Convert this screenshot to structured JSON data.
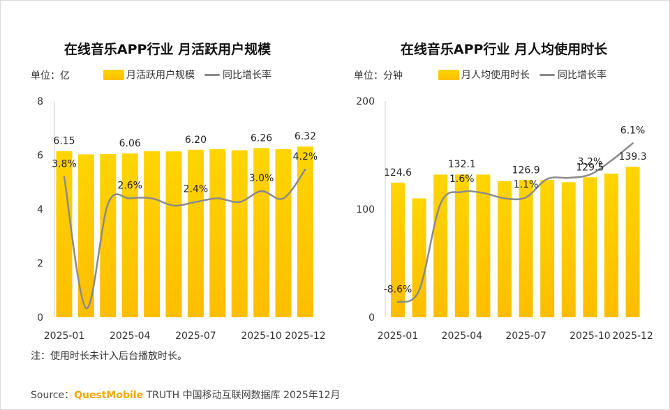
{
  "note": "注：使用时长未计入后台播放时长。",
  "source": {
    "prefix": "Source：",
    "brand": "QuestMobile",
    "rest": " TRUTH 中国移动互联网数据库 2025年12月"
  },
  "colors": {
    "bar": "#ffc800",
    "line": "#8a8a8a",
    "brand": "#f5a800"
  },
  "chart_data": [
    {
      "type": "bar",
      "title": "在线音乐APP行业 月活跃用户规模",
      "unit_label": "单位：亿",
      "legend": {
        "bar": "月活跃用户规模",
        "line": "同比增长率"
      },
      "categories": [
        "2025-01",
        "2025-02",
        "2025-03",
        "2025-04",
        "2025-05",
        "2025-06",
        "2025-07",
        "2025-08",
        "2025-09",
        "2025-10",
        "2025-11",
        "2025-12"
      ],
      "x_tick_labels": [
        "2025-01",
        "",
        "",
        "2025-04",
        "",
        "",
        "2025-07",
        "",
        "",
        "2025-10",
        "",
        "2025-12"
      ],
      "y_ticks": [
        "0",
        "2",
        "4",
        "6",
        "8"
      ],
      "ylim": [
        0,
        8
      ],
      "series": [
        {
          "name": "月活跃用户规模",
          "type": "bar",
          "values": [
            6.15,
            6.03,
            6.04,
            6.06,
            6.15,
            6.14,
            6.2,
            6.22,
            6.18,
            6.26,
            6.22,
            6.32
          ],
          "labels": [
            "6.15",
            "",
            "",
            "6.06",
            "",
            "",
            "6.20",
            "",
            "",
            "6.26",
            "",
            "6.32"
          ]
        },
        {
          "name": "同比增长率",
          "type": "line",
          "values": [
            3.8,
            -3.5,
            2.3,
            2.6,
            2.6,
            2.2,
            2.4,
            2.6,
            2.4,
            3.0,
            2.6,
            4.2
          ],
          "labels": [
            "3.8%",
            "",
            "",
            "2.6%",
            "",
            "",
            "2.4%",
            "",
            "",
            "3.0%",
            "",
            "4.2%"
          ],
          "range": [
            -4,
            8
          ]
        }
      ]
    },
    {
      "type": "bar",
      "title": "在线音乐APP行业 月人均使用时长",
      "unit_label": "单位：分钟",
      "legend": {
        "bar": "月人均使用时长",
        "line": "同比增长率"
      },
      "categories": [
        "2025-01",
        "2025-02",
        "2025-03",
        "2025-04",
        "2025-05",
        "2025-06",
        "2025-07",
        "2025-08",
        "2025-09",
        "2025-10",
        "2025-11",
        "2025-12"
      ],
      "x_tick_labels": [
        "2025-01",
        "",
        "",
        "2025-04",
        "",
        "",
        "2025-07",
        "",
        "",
        "2025-10",
        "",
        "2025-12"
      ],
      "y_ticks": [
        "0",
        "100",
        "200"
      ],
      "ylim": [
        0,
        200
      ],
      "series": [
        {
          "name": "月人均使用时长",
          "type": "bar",
          "values": [
            124.6,
            110,
            132,
            132.1,
            132,
            126,
            126.9,
            127,
            125,
            129.5,
            133,
            139.3
          ],
          "labels": [
            "124.6",
            "",
            "",
            "132.1",
            "",
            "",
            "126.9",
            "",
            "",
            "129.5",
            "",
            "139.3"
          ]
        },
        {
          "name": "同比增长率",
          "type": "line",
          "values": [
            -8.6,
            -7.5,
            0.5,
            1.6,
            1.5,
            1.0,
            1.1,
            2.8,
            2.9,
            3.2,
            4.5,
            6.1
          ],
          "labels": [
            "-8.6%",
            "",
            "",
            "1.6%",
            "",
            "",
            "1.1%",
            "",
            "",
            "3.2%",
            "",
            "6.1%"
          ],
          "range": [
            -10,
            10
          ]
        }
      ]
    }
  ]
}
